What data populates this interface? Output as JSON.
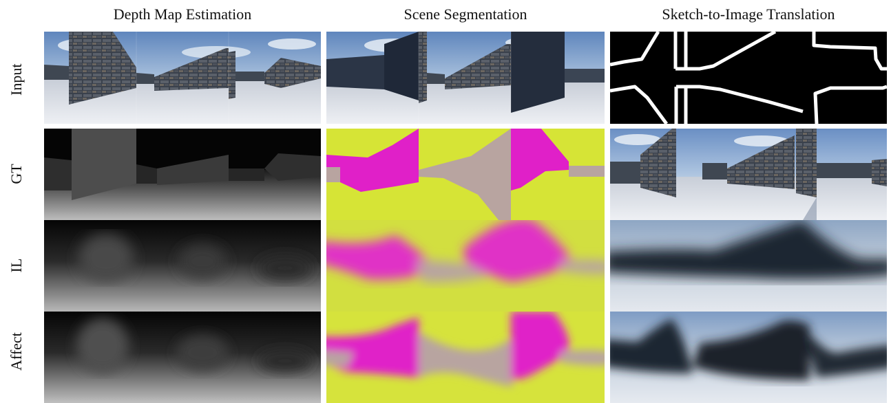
{
  "figure": {
    "columns": [
      {
        "title": "Depth Map Estimation"
      },
      {
        "title": "Scene Segmentation"
      },
      {
        "title": "Sketch-to-Image Translation"
      }
    ],
    "rows": [
      {
        "label": "Input"
      },
      {
        "label": "GT"
      },
      {
        "label": "IL"
      },
      {
        "label": "Affect"
      }
    ]
  },
  "colors": {
    "segmentation_ground": "#d6e436",
    "segmentation_wall": "#e020c8",
    "segmentation_sky": "#b8a4a0",
    "sky": "#aac3de",
    "floor": "#e4e8ee",
    "wall_stone": "#3c4450"
  }
}
